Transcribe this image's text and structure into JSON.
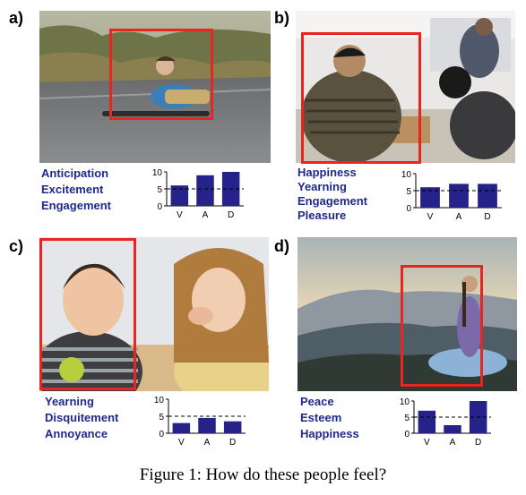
{
  "panels": [
    {
      "letter": "a)",
      "emotions": [
        "Anticipation",
        "Excitement",
        "Engagement"
      ],
      "vad": {
        "V": 6,
        "A": 9,
        "D": 10
      }
    },
    {
      "letter": "b)",
      "emotions": [
        "Happiness",
        "Yearning",
        "Engagement",
        "Pleasure"
      ],
      "vad": {
        "V": 6,
        "A": 7,
        "D": 7
      }
    },
    {
      "letter": "c)",
      "emotions": [
        "Yearning",
        "Disquitement",
        "Annoyance"
      ],
      "vad": {
        "V": 3,
        "A": 4.5,
        "D": 3.5
      }
    },
    {
      "letter": "d)",
      "emotions": [
        "Peace",
        "Esteem",
        "Happiness"
      ],
      "vad": {
        "V": 7,
        "A": 2.5,
        "D": 10
      }
    }
  ],
  "chart_data": [
    {
      "type": "bar",
      "categories": [
        "V",
        "A",
        "D"
      ],
      "values": [
        6,
        9,
        10
      ],
      "ylim": [
        0,
        10
      ],
      "yticks": [
        0,
        5,
        10
      ],
      "reference_line": 5
    },
    {
      "type": "bar",
      "categories": [
        "V",
        "A",
        "D"
      ],
      "values": [
        6,
        7,
        7
      ],
      "ylim": [
        0,
        10
      ],
      "yticks": [
        0,
        5,
        10
      ],
      "reference_line": 5
    },
    {
      "type": "bar",
      "categories": [
        "V",
        "A",
        "D"
      ],
      "values": [
        3,
        4.5,
        3.5
      ],
      "ylim": [
        0,
        10
      ],
      "yticks": [
        0,
        5,
        10
      ],
      "reference_line": 5
    },
    {
      "type": "bar",
      "categories": [
        "V",
        "A",
        "D"
      ],
      "values": [
        7,
        2.5,
        10
      ],
      "ylim": [
        0,
        10
      ],
      "yticks": [
        0,
        5,
        10
      ],
      "reference_line": 5
    }
  ],
  "colors": {
    "bar": "#25228a",
    "bbox": "#e8261f",
    "label": "#1f2a8c"
  },
  "caption": "Figure 1: How do these people feel?"
}
